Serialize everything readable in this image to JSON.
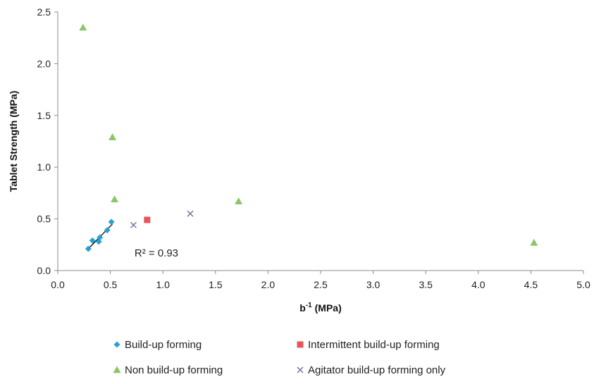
{
  "chart_data": {
    "type": "scatter",
    "title": "",
    "xlabel": "b",
    "xlabel_sup": "-1",
    "xlabel_unit": " (MPa)",
    "ylabel": "Tablet Strength (MPa)",
    "xlim": [
      0,
      5
    ],
    "ylim": [
      0,
      2.5
    ],
    "xticks": [
      "0.0",
      "0.5",
      "1.0",
      "1.5",
      "2.0",
      "2.5",
      "3.0",
      "3.5",
      "4.0",
      "4.5",
      "5.0"
    ],
    "yticks": [
      "0.0",
      "0.5",
      "1.0",
      "1.5",
      "2.0",
      "2.5"
    ],
    "grid": false,
    "legend_position": "bottom",
    "series": [
      {
        "name": "Build-up forming",
        "marker": "diamond",
        "color": "#2e9fd3",
        "points": [
          [
            0.29,
            0.21
          ],
          [
            0.33,
            0.29
          ],
          [
            0.39,
            0.28
          ],
          [
            0.4,
            0.32
          ],
          [
            0.47,
            0.39
          ],
          [
            0.51,
            0.47
          ]
        ]
      },
      {
        "name": "Intermittent build-up forming",
        "marker": "square",
        "color": "#e8555a",
        "points": [
          [
            0.85,
            0.49
          ]
        ]
      },
      {
        "name": "Non build-up forming",
        "marker": "triangle",
        "color": "#8cc66b",
        "points": [
          [
            0.24,
            2.35
          ],
          [
            0.52,
            1.29
          ],
          [
            0.54,
            0.69
          ],
          [
            1.72,
            0.67
          ],
          [
            4.53,
            0.27
          ]
        ]
      },
      {
        "name": "Agitator build-up forming only",
        "marker": "x",
        "color": "#7b6aa3",
        "points": [
          [
            0.72,
            0.44
          ],
          [
            1.26,
            0.55
          ]
        ]
      }
    ],
    "trendline": {
      "series": "Build-up forming",
      "from": [
        0.28,
        0.2
      ],
      "to": [
        0.52,
        0.45
      ],
      "color": "#111111",
      "label": "R² = 0.93"
    }
  }
}
